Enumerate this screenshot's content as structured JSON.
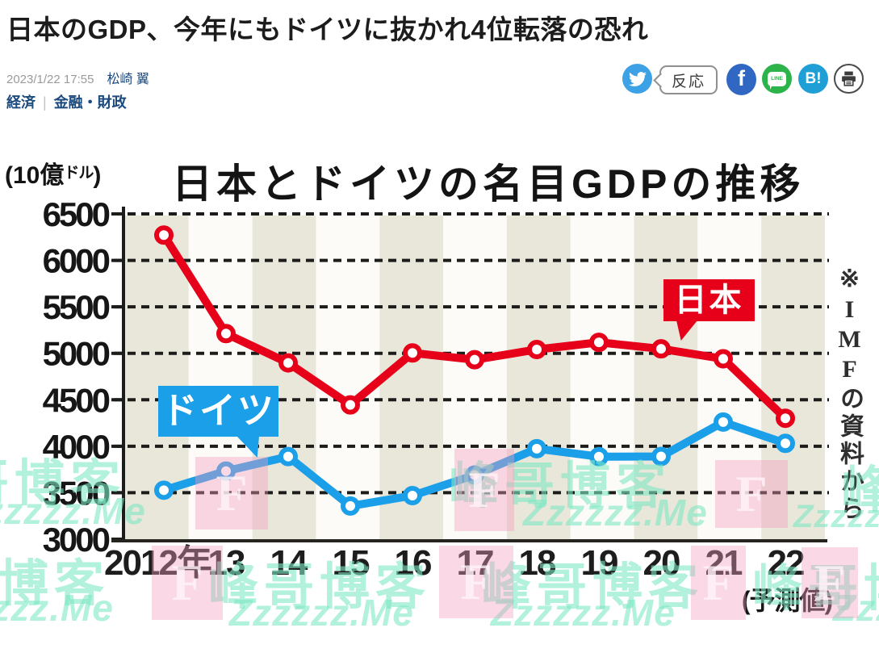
{
  "article": {
    "title": "日本のGDP、今年にもドイツに抜かれ4位転落の恐れ",
    "date": "2023/1/22 17:55",
    "author": "松崎 翼",
    "categories": [
      "経済",
      "金融・財政"
    ],
    "category_divider": "|"
  },
  "share": {
    "reaction_label": "反応",
    "facebook_label": "f",
    "line_label": "LINE",
    "hatena_label": "B!",
    "colors": {
      "twitter": "#3da1e5",
      "facebook": "#2f67c3",
      "line": "#2cb44b",
      "hatena": "#1f9fd6"
    }
  },
  "chart_data": {
    "type": "line",
    "title": "日本とドイツの名目GDPの推移",
    "unit_open": "(",
    "unit_value": "10億",
    "unit_small": "ドル",
    "unit_close": ")",
    "source_note": "※IMFの資料から",
    "x_tick_labels": [
      "2012年",
      "13",
      "14",
      "15",
      "16",
      "17",
      "18",
      "19",
      "20",
      "21",
      "22"
    ],
    "x_last_note": "(予測値)",
    "ylim": [
      3000,
      6500
    ],
    "y_ticks": [
      3000,
      3500,
      4000,
      4500,
      5000,
      5500,
      6000,
      6500
    ],
    "grid": "dashed-horizontal",
    "legend_position": "inline-callouts",
    "series": [
      {
        "name": "日本",
        "color": "#e60019",
        "values": [
          6272,
          5212,
          4897,
          4445,
          5004,
          4931,
          5041,
          5118,
          5048,
          4941,
          4301
        ]
      },
      {
        "name": "ドイツ",
        "color": "#1b9fe8",
        "values": [
          3527,
          3733,
          3889,
          3357,
          3469,
          3690,
          3974,
          3888,
          3890,
          4260,
          4031
        ]
      }
    ]
  },
  "watermark": {
    "site_name": "峰哥博客",
    "site_url": "Zzzzzz.Me",
    "letter": "F"
  }
}
